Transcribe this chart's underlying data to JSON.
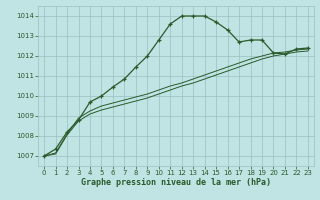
{
  "xlabel": "Graphe pression niveau de la mer (hPa)",
  "background_color": "#c0e4e4",
  "plot_bg_color": "#c0e4e4",
  "grid_color": "#9bbfbf",
  "line_color": "#2a5a2a",
  "ylim": [
    1006.5,
    1014.5
  ],
  "xlim": [
    -0.5,
    23.5
  ],
  "yticks": [
    1007,
    1008,
    1009,
    1010,
    1011,
    1012,
    1013,
    1014
  ],
  "xticks": [
    0,
    1,
    2,
    3,
    4,
    5,
    6,
    7,
    8,
    9,
    10,
    11,
    12,
    13,
    14,
    15,
    16,
    17,
    18,
    19,
    20,
    21,
    22,
    23
  ],
  "line1_x": [
    0,
    1,
    2,
    3,
    4,
    5,
    6,
    7,
    8,
    9,
    10,
    11,
    12,
    13,
    14,
    15,
    16,
    17,
    18,
    19,
    20,
    21,
    22,
    23
  ],
  "line1_y": [
    1007.0,
    1007.35,
    1008.2,
    1008.8,
    1009.7,
    1010.0,
    1010.45,
    1010.85,
    1011.45,
    1012.0,
    1012.8,
    1013.6,
    1014.0,
    1014.0,
    1014.0,
    1013.7,
    1013.3,
    1012.7,
    1012.8,
    1012.8,
    1012.15,
    1012.1,
    1012.35,
    1012.4
  ],
  "line2_x": [
    0,
    1,
    2,
    3,
    4,
    5,
    6,
    7,
    8,
    9,
    10,
    11,
    12,
    13,
    14,
    15,
    16,
    17,
    18,
    19,
    20,
    21,
    22,
    23
  ],
  "line2_y": [
    1007.0,
    1007.15,
    1008.1,
    1008.9,
    1009.25,
    1009.5,
    1009.65,
    1009.8,
    1009.95,
    1010.1,
    1010.3,
    1010.5,
    1010.65,
    1010.85,
    1011.05,
    1011.25,
    1011.45,
    1011.65,
    1011.85,
    1012.0,
    1012.15,
    1012.2,
    1012.3,
    1012.35
  ],
  "line3_x": [
    0,
    1,
    2,
    3,
    4,
    5,
    6,
    7,
    8,
    9,
    10,
    11,
    12,
    13,
    14,
    15,
    16,
    17,
    18,
    19,
    20,
    21,
    22,
    23
  ],
  "line3_y": [
    1007.0,
    1007.1,
    1008.05,
    1008.75,
    1009.1,
    1009.3,
    1009.45,
    1009.6,
    1009.75,
    1009.9,
    1010.1,
    1010.3,
    1010.5,
    1010.65,
    1010.85,
    1011.05,
    1011.25,
    1011.45,
    1011.65,
    1011.85,
    1012.0,
    1012.1,
    1012.2,
    1012.25
  ]
}
